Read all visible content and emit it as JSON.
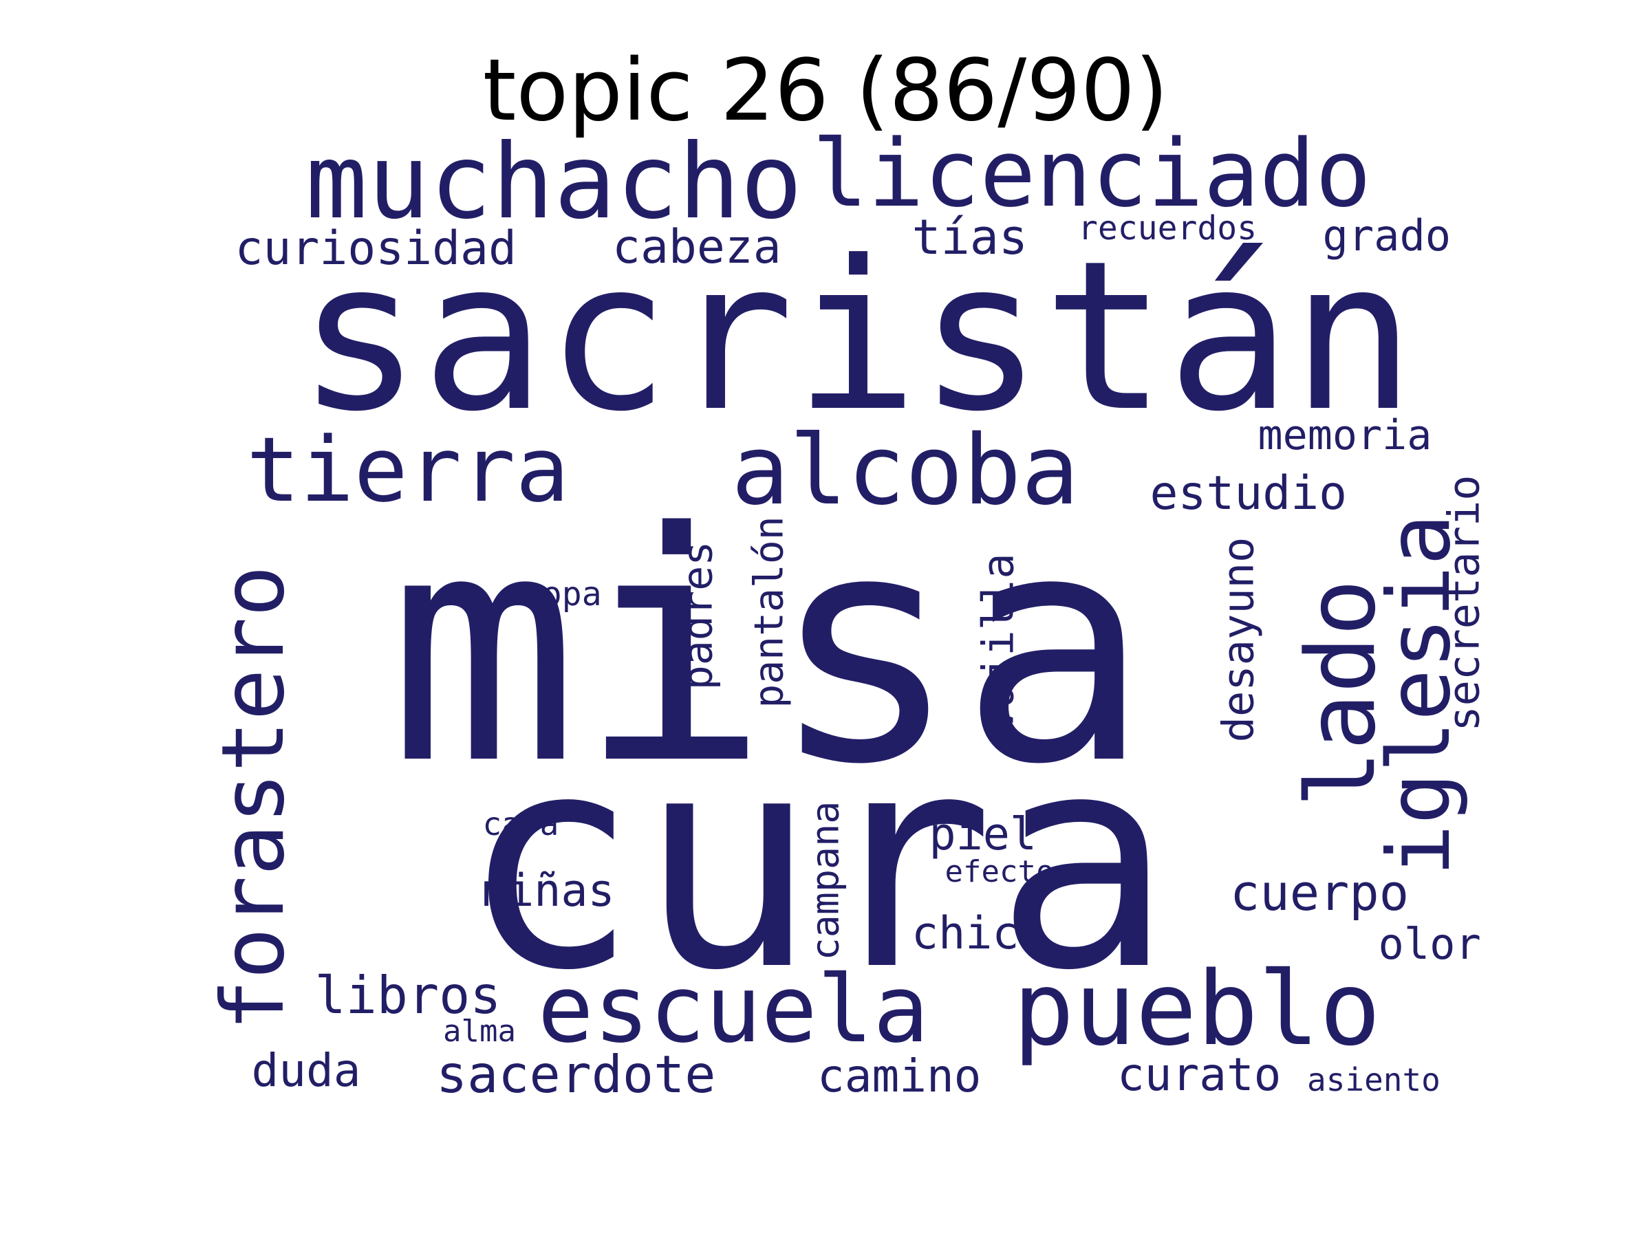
{
  "title": "topic 26 (86/90)",
  "word_color": "#221E66",
  "background_color": "#FFFFFF",
  "words": [
    {
      "id": "sacristan",
      "text": "sacristán"
    },
    {
      "id": "misa",
      "text": "misa"
    },
    {
      "id": "cura",
      "text": "cura"
    },
    {
      "id": "muchacho",
      "text": "muchacho"
    },
    {
      "id": "licenciado",
      "text": "licenciado"
    },
    {
      "id": "curiosidad",
      "text": "curiosidad"
    },
    {
      "id": "cabeza",
      "text": "cabeza"
    },
    {
      "id": "tias",
      "text": "tías"
    },
    {
      "id": "recuerdos",
      "text": "recuerdos"
    },
    {
      "id": "grado",
      "text": "grado"
    },
    {
      "id": "tierra",
      "text": "tierra"
    },
    {
      "id": "alcoba",
      "text": "alcoba"
    },
    {
      "id": "memoria",
      "text": "memoria"
    },
    {
      "id": "estudio",
      "text": "estudio"
    },
    {
      "id": "forastero",
      "text": "forastero"
    },
    {
      "id": "lado",
      "text": "lado"
    },
    {
      "id": "iglesia",
      "text": "iglesia"
    },
    {
      "id": "secretario",
      "text": "secretario"
    },
    {
      "id": "desayuno",
      "text": "desayuno"
    },
    {
      "id": "padres",
      "text": "padres"
    },
    {
      "id": "pantalon",
      "text": "pantalón"
    },
    {
      "id": "vajilla",
      "text": "vajilla"
    },
    {
      "id": "ropa",
      "text": "ropa"
    },
    {
      "id": "campana",
      "text": "campana"
    },
    {
      "id": "piel",
      "text": "piel"
    },
    {
      "id": "efecto",
      "text": "efecto"
    },
    {
      "id": "cara",
      "text": "cara"
    },
    {
      "id": "ninas",
      "text": "niñas"
    },
    {
      "id": "cuerpo",
      "text": "cuerpo"
    },
    {
      "id": "chico",
      "text": "chico"
    },
    {
      "id": "olor",
      "text": "olor"
    },
    {
      "id": "escuela",
      "text": "escuela"
    },
    {
      "id": "pueblo",
      "text": "pueblo"
    },
    {
      "id": "libros",
      "text": "libros"
    },
    {
      "id": "alma",
      "text": "alma"
    },
    {
      "id": "duda",
      "text": "duda"
    },
    {
      "id": "sacerdote",
      "text": "sacerdote"
    },
    {
      "id": "camino",
      "text": "camino"
    },
    {
      "id": "curato",
      "text": "curato"
    },
    {
      "id": "asiento",
      "text": "asiento"
    }
  ]
}
